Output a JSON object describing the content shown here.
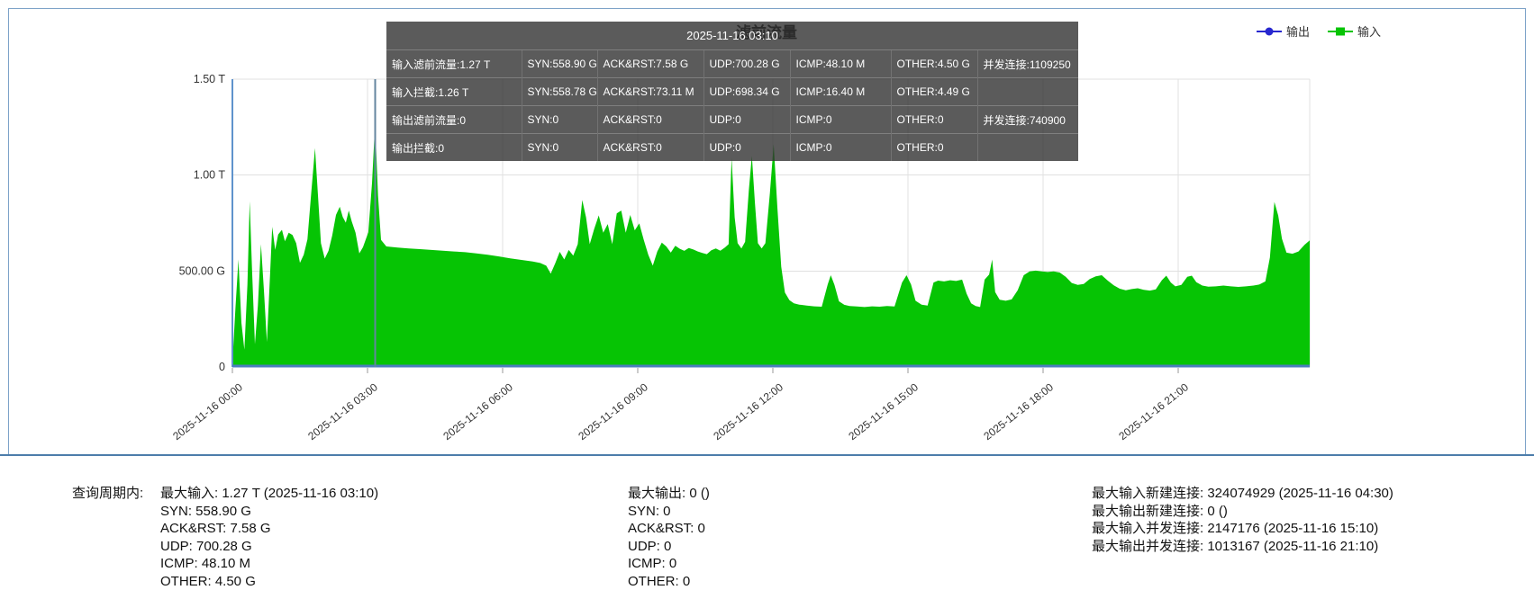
{
  "panel": {
    "title": "滤前流量"
  },
  "legend": {
    "items": [
      {
        "label": "输出",
        "color": "#2727cf",
        "marker": "circle"
      },
      {
        "label": "输入",
        "color": "#06c404",
        "marker": "square"
      }
    ]
  },
  "tooltip": {
    "timestamp": "2025-11-16 03:10",
    "rows": [
      [
        "输入滤前流量:1.27 T",
        "SYN:558.90 G",
        "ACK&RST:7.58 G",
        "UDP:700.28 G",
        "ICMP:48.10 M",
        "OTHER:4.50 G",
        "并发连接:1109250"
      ],
      [
        "输入拦截:1.26 T",
        "SYN:558.78 G",
        "ACK&RST:73.11 M",
        "UDP:698.34 G",
        "ICMP:16.40 M",
        "OTHER:4.49 G",
        ""
      ],
      [
        "输出滤前流量:0",
        "SYN:0",
        "ACK&RST:0",
        "UDP:0",
        "ICMP:0",
        "OTHER:0",
        "并发连接:740900"
      ],
      [
        "输出拦截:0",
        "SYN:0",
        "ACK&RST:0",
        "UDP:0",
        "ICMP:0",
        "OTHER:0",
        ""
      ]
    ]
  },
  "summary": {
    "period_label": "查询周期内:",
    "columns": [
      {
        "lines": [
          "最大输入: 1.27 T (2025-11-16 03:10)",
          "SYN: 558.90 G",
          "ACK&RST: 7.58 G",
          "UDP: 700.28 G",
          "ICMP: 48.10 M",
          "OTHER: 4.50 G"
        ]
      },
      {
        "lines": [
          "最大输出: 0 ()",
          "SYN: 0",
          "ACK&RST: 0",
          "UDP: 0",
          "ICMP: 0",
          "OTHER: 0"
        ]
      },
      {
        "lines": [
          "最大输入新建连接: 324074929 (2025-11-16 04:30)",
          "最大输出新建连接: 0 ()",
          "最大输入并发连接: 2147176 (2025-11-16 15:10)",
          "最大输出并发连接: 1013167 (2025-11-16 21:10)"
        ]
      }
    ]
  },
  "colors": {
    "input_green": "#06c404",
    "output_blue": "#2727cf",
    "x_axis_line": "#4a7ebc",
    "y_axis_line": "#5f93cc",
    "crosshair": "#64869f",
    "gridline": "#e0e0e0",
    "tick": "#999999",
    "axis_text": "#333333",
    "panel_border": "#7da2c8",
    "tooltip_bg": "rgba(50,50,50,0.80)"
  },
  "chart_data": {
    "type": "area",
    "title": "滤前流量",
    "xlabel": "",
    "ylabel": "",
    "x_unit": "minutes since 2025-11-16 00:00",
    "x_range_minutes": [
      0,
      1435
    ],
    "x_tick_minutes": [
      0,
      180,
      360,
      540,
      720,
      900,
      1080,
      1260
    ],
    "x_tick_labels": [
      "2025-11-16 00:00",
      "2025-11-16 03:00",
      "2025-11-16 06:00",
      "2025-11-16 09:00",
      "2025-11-16 12:00",
      "2025-11-16 15:00",
      "2025-11-16 18:00",
      "2025-11-16 21:00"
    ],
    "y_unit": "bits per second (G = Giga, T = Tera)",
    "ylim": [
      0,
      1500
    ],
    "y_tick_values": [
      0,
      500,
      1000,
      1500
    ],
    "y_tick_labels": [
      "0",
      "500.00 G",
      "1.00 T",
      "1.50 T"
    ],
    "grid": true,
    "legend_position": "top-right",
    "crosshair_minute": 190,
    "highlight_point": {
      "time": "2025-11-16 03:10",
      "input_value_G": 1270
    },
    "series": [
      {
        "name": "输出",
        "color": "#2727cf",
        "constant_value": 0
      },
      {
        "name": "输入",
        "color": "#06c404",
        "points": [
          [
            0,
            20
          ],
          [
            4,
            300
          ],
          [
            8,
            560
          ],
          [
            12,
            230
          ],
          [
            16,
            90
          ],
          [
            20,
            430
          ],
          [
            23,
            864
          ],
          [
            26,
            520
          ],
          [
            30,
            118
          ],
          [
            34,
            320
          ],
          [
            38,
            640
          ],
          [
            42,
            400
          ],
          [
            46,
            130
          ],
          [
            50,
            470
          ],
          [
            53,
            731
          ],
          [
            57,
            610
          ],
          [
            61,
            690
          ],
          [
            66,
            715
          ],
          [
            70,
            655
          ],
          [
            75,
            700
          ],
          [
            80,
            688
          ],
          [
            85,
            645
          ],
          [
            90,
            543
          ],
          [
            95,
            585
          ],
          [
            100,
            665
          ],
          [
            105,
            905
          ],
          [
            110,
            1141
          ],
          [
            114,
            895
          ],
          [
            118,
            645
          ],
          [
            123,
            565
          ],
          [
            128,
            605
          ],
          [
            133,
            685
          ],
          [
            138,
            792
          ],
          [
            143,
            835
          ],
          [
            147,
            782
          ],
          [
            151,
            752
          ],
          [
            155,
            815
          ],
          [
            159,
            758
          ],
          [
            164,
            700
          ],
          [
            169,
            592
          ],
          [
            174,
            625
          ],
          [
            181,
            702
          ],
          [
            186,
            958
          ],
          [
            190,
            1270
          ],
          [
            194,
            892
          ],
          [
            198,
            662
          ],
          [
            205,
            628
          ],
          [
            220,
            622
          ],
          [
            235,
            618
          ],
          [
            250,
            614
          ],
          [
            265,
            610
          ],
          [
            280,
            606
          ],
          [
            295,
            602
          ],
          [
            310,
            598
          ],
          [
            325,
            592
          ],
          [
            340,
            585
          ],
          [
            355,
            576
          ],
          [
            370,
            566
          ],
          [
            385,
            558
          ],
          [
            400,
            550
          ],
          [
            410,
            542
          ],
          [
            418,
            528
          ],
          [
            424,
            486
          ],
          [
            430,
            540
          ],
          [
            436,
            600
          ],
          [
            442,
            560
          ],
          [
            448,
            610
          ],
          [
            454,
            580
          ],
          [
            460,
            640
          ],
          [
            466,
            870
          ],
          [
            471,
            780
          ],
          [
            476,
            640
          ],
          [
            482,
            720
          ],
          [
            488,
            790
          ],
          [
            494,
            700
          ],
          [
            500,
            745
          ],
          [
            506,
            640
          ],
          [
            512,
            800
          ],
          [
            518,
            815
          ],
          [
            524,
            700
          ],
          [
            530,
            792
          ],
          [
            536,
            712
          ],
          [
            542,
            748
          ],
          [
            548,
            662
          ],
          [
            554,
            585
          ],
          [
            560,
            528
          ],
          [
            566,
            602
          ],
          [
            572,
            648
          ],
          [
            578,
            628
          ],
          [
            584,
            596
          ],
          [
            590,
            632
          ],
          [
            596,
            616
          ],
          [
            602,
            605
          ],
          [
            608,
            620
          ],
          [
            614,
            612
          ],
          [
            620,
            602
          ],
          [
            626,
            594
          ],
          [
            632,
            588
          ],
          [
            638,
            608
          ],
          [
            644,
            618
          ],
          [
            650,
            606
          ],
          [
            656,
            622
          ],
          [
            661,
            640
          ],
          [
            665,
            1090
          ],
          [
            669,
            780
          ],
          [
            673,
            645
          ],
          [
            678,
            618
          ],
          [
            683,
            652
          ],
          [
            688,
            925
          ],
          [
            692,
            1100
          ],
          [
            696,
            855
          ],
          [
            700,
            645
          ],
          [
            705,
            618
          ],
          [
            710,
            645
          ],
          [
            716,
            905
          ],
          [
            721,
            1160
          ],
          [
            726,
            825
          ],
          [
            731,
            522
          ],
          [
            736,
            388
          ],
          [
            742,
            348
          ],
          [
            748,
            332
          ],
          [
            755,
            325
          ],
          [
            765,
            320
          ],
          [
            775,
            316
          ],
          [
            785,
            314
          ],
          [
            793,
            430
          ],
          [
            797,
            478
          ],
          [
            802,
            428
          ],
          [
            808,
            342
          ],
          [
            815,
            324
          ],
          [
            822,
            318
          ],
          [
            832,
            315
          ],
          [
            842,
            312
          ],
          [
            852,
            316
          ],
          [
            862,
            314
          ],
          [
            872,
            318
          ],
          [
            882,
            315
          ],
          [
            892,
            440
          ],
          [
            898,
            478
          ],
          [
            904,
            430
          ],
          [
            910,
            345
          ],
          [
            918,
            325
          ],
          [
            926,
            320
          ],
          [
            934,
            440
          ],
          [
            940,
            450
          ],
          [
            948,
            446
          ],
          [
            956,
            452
          ],
          [
            964,
            448
          ],
          [
            972,
            455
          ],
          [
            978,
            382
          ],
          [
            984,
            332
          ],
          [
            990,
            318
          ],
          [
            996,
            312
          ],
          [
            1002,
            455
          ],
          [
            1008,
            482
          ],
          [
            1012,
            560
          ],
          [
            1016,
            390
          ],
          [
            1022,
            350
          ],
          [
            1030,
            345
          ],
          [
            1038,
            352
          ],
          [
            1046,
            400
          ],
          [
            1054,
            478
          ],
          [
            1062,
            498
          ],
          [
            1070,
            502
          ],
          [
            1078,
            498
          ],
          [
            1086,
            495
          ],
          [
            1094,
            498
          ],
          [
            1102,
            492
          ],
          [
            1110,
            470
          ],
          [
            1118,
            438
          ],
          [
            1126,
            428
          ],
          [
            1134,
            432
          ],
          [
            1142,
            458
          ],
          [
            1150,
            472
          ],
          [
            1158,
            478
          ],
          [
            1166,
            450
          ],
          [
            1174,
            425
          ],
          [
            1182,
            408
          ],
          [
            1190,
            400
          ],
          [
            1198,
            406
          ],
          [
            1206,
            410
          ],
          [
            1214,
            402
          ],
          [
            1222,
            398
          ],
          [
            1230,
            404
          ],
          [
            1238,
            452
          ],
          [
            1244,
            476
          ],
          [
            1250,
            440
          ],
          [
            1256,
            420
          ],
          [
            1264,
            428
          ],
          [
            1272,
            470
          ],
          [
            1278,
            476
          ],
          [
            1284,
            442
          ],
          [
            1292,
            424
          ],
          [
            1300,
            418
          ],
          [
            1310,
            420
          ],
          [
            1320,
            424
          ],
          [
            1330,
            420
          ],
          [
            1340,
            417
          ],
          [
            1350,
            420
          ],
          [
            1360,
            424
          ],
          [
            1368,
            430
          ],
          [
            1376,
            446
          ],
          [
            1382,
            570
          ],
          [
            1388,
            860
          ],
          [
            1393,
            790
          ],
          [
            1398,
            668
          ],
          [
            1404,
            596
          ],
          [
            1412,
            590
          ],
          [
            1420,
            602
          ],
          [
            1428,
            636
          ],
          [
            1435,
            660
          ]
        ]
      }
    ]
  }
}
